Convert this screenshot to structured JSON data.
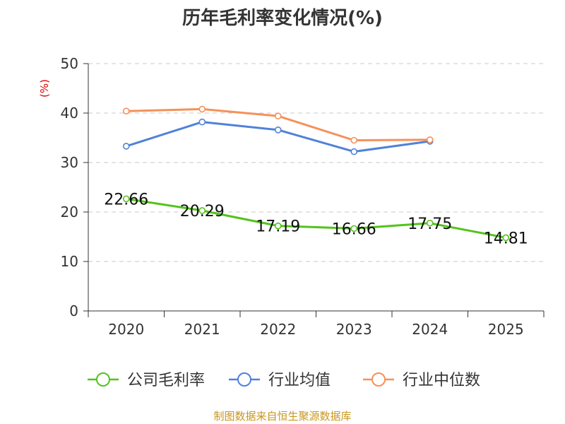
{
  "chart_data": {
    "type": "line",
    "title": "历年毛利率变化情况(%)",
    "ylabel": "(%)",
    "xlabel": "",
    "categories": [
      "2020",
      "2021",
      "2022",
      "2023",
      "2024",
      "2025"
    ],
    "ylim": [
      0,
      50
    ],
    "yticks": [
      0,
      10,
      20,
      30,
      40,
      50
    ],
    "grid": true,
    "legend_position": "bottom",
    "series": [
      {
        "name": "公司毛利率",
        "color": "#52c41a",
        "values": [
          22.66,
          20.29,
          17.19,
          16.66,
          17.75,
          14.81
        ],
        "labels": [
          "22.66",
          "20.29",
          "17.19",
          "16.66",
          "17.75",
          "14.81"
        ]
      },
      {
        "name": "行业均值",
        "color": "#4f82d9",
        "values": [
          33.3,
          38.2,
          36.6,
          32.2,
          34.3,
          null
        ]
      },
      {
        "name": "行业中位数",
        "color": "#f5915a",
        "values": [
          40.4,
          40.8,
          39.4,
          34.5,
          34.6,
          null
        ]
      }
    ]
  },
  "footer": {
    "source": "制图数据来自恒生聚源数据库"
  }
}
